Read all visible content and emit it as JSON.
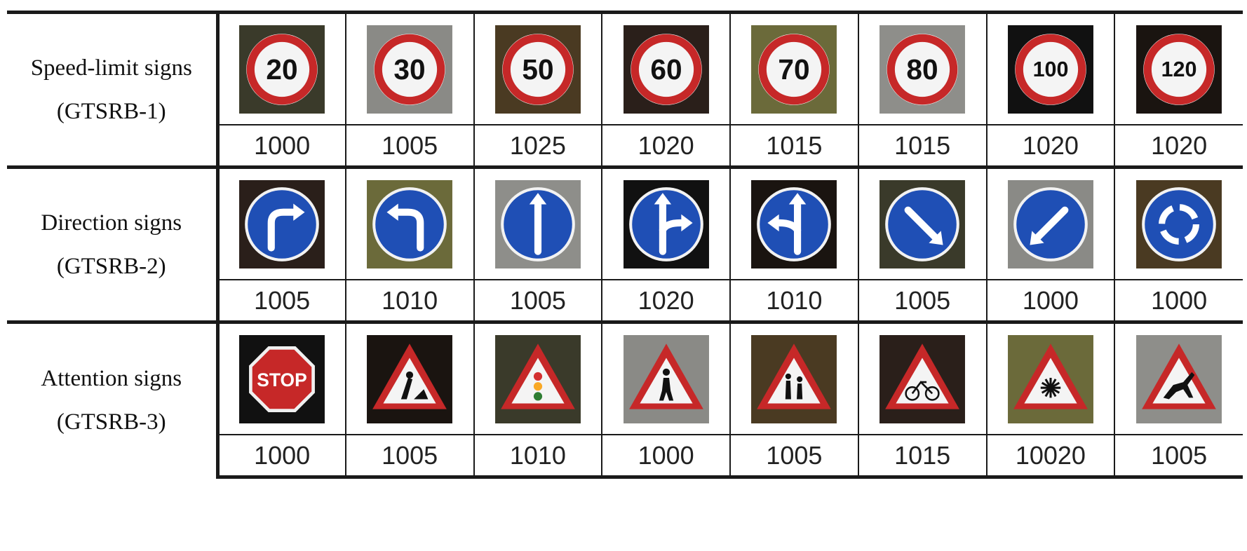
{
  "groups": [
    {
      "name": "Speed-limit signs",
      "dataset": "(GTSRB-1)",
      "signs": [
        {
          "icon": "speed-limit-20-icon",
          "label": "20",
          "count": "1000"
        },
        {
          "icon": "speed-limit-30-icon",
          "label": "30",
          "count": "1005"
        },
        {
          "icon": "speed-limit-50-icon",
          "label": "50",
          "count": "1025"
        },
        {
          "icon": "speed-limit-60-icon",
          "label": "60",
          "count": "1020"
        },
        {
          "icon": "speed-limit-70-icon",
          "label": "70",
          "count": "1015"
        },
        {
          "icon": "speed-limit-80-icon",
          "label": "80",
          "count": "1015"
        },
        {
          "icon": "speed-limit-100-icon",
          "label": "100",
          "count": "1020"
        },
        {
          "icon": "speed-limit-120-icon",
          "label": "120",
          "count": "1020"
        }
      ]
    },
    {
      "name": "Direction signs",
      "dataset": "(GTSRB-2)",
      "signs": [
        {
          "icon": "turn-right-ahead-icon",
          "count": "1005"
        },
        {
          "icon": "turn-left-ahead-icon",
          "count": "1010"
        },
        {
          "icon": "ahead-only-icon",
          "count": "1005"
        },
        {
          "icon": "go-straight-or-right-icon",
          "count": "1020"
        },
        {
          "icon": "go-straight-or-left-icon",
          "count": "1010"
        },
        {
          "icon": "keep-right-icon",
          "count": "1005"
        },
        {
          "icon": "keep-left-icon",
          "count": "1000"
        },
        {
          "icon": "roundabout-icon",
          "count": "1000"
        }
      ]
    },
    {
      "name": "Attention signs",
      "dataset": "(GTSRB-3)",
      "signs": [
        {
          "icon": "stop-sign-icon",
          "label": "STOP",
          "count": "1000"
        },
        {
          "icon": "road-work-icon",
          "count": "1005"
        },
        {
          "icon": "traffic-signals-icon",
          "count": "1010"
        },
        {
          "icon": "pedestrians-icon",
          "count": "1000"
        },
        {
          "icon": "children-crossing-icon",
          "count": "1005"
        },
        {
          "icon": "bicycles-crossing-icon",
          "count": "1015"
        },
        {
          "icon": "ice-snow-icon",
          "count": "10020"
        },
        {
          "icon": "wild-animals-crossing-icon",
          "count": "1005"
        }
      ]
    }
  ]
}
